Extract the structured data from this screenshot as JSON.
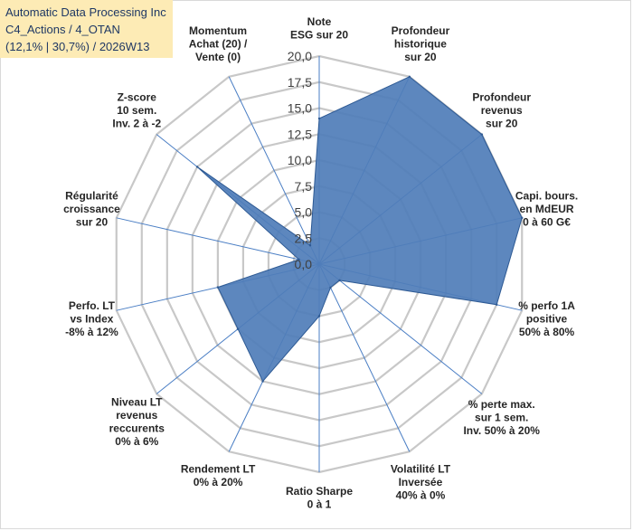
{
  "header": {
    "line1": "Automatic Data Processing Inc",
    "line2": "C4_Actions / 4_OTAN",
    "line3": "(12,1% | 30,7%) / 2026W13"
  },
  "colors": {
    "fill": "#4f7db8",
    "stroke": "#2e5a94",
    "grid": "#c8c8c8",
    "spoke": "#4a7ec4",
    "title_bg": "#fdebb5"
  },
  "chart_data": {
    "type": "radar",
    "title": "",
    "rmin": 0,
    "rmax": 20,
    "ticks": [
      "0,0",
      "2,5",
      "5,0",
      "7,5",
      "10,0",
      "12,5",
      "15,0",
      "17,5",
      "20,0"
    ],
    "tick_values": [
      0,
      2.5,
      5,
      7.5,
      10,
      12.5,
      15,
      17.5,
      20
    ],
    "categories": [
      [
        "Note",
        "ESG sur 20"
      ],
      [
        "Profondeur",
        "historique",
        "sur 20"
      ],
      [
        "Profondeur",
        "revenus",
        "sur 20"
      ],
      [
        "Capi. bours.",
        "en MdEUR",
        "0 à 60 G€"
      ],
      [
        "% perfo 1A",
        "positive",
        "50% à 80%"
      ],
      [
        "% perte max.",
        "sur 1 sem.",
        "Inv. 50% à 20%"
      ],
      [
        "Volatilité LT",
        "Inversée",
        "40% à 0%"
      ],
      [
        "Ratio Sharpe",
        "0 à 1"
      ],
      [
        "Rendement LT",
        "0% à 20%"
      ],
      [
        "Niveau LT",
        "revenus",
        "reccurents",
        "0% à 6%"
      ],
      [
        "Perfo. LT",
        "vs Index",
        "-8% à 12%"
      ],
      [
        "Régularité",
        "croissance",
        "sur 20"
      ],
      [
        "Z-score",
        "10 sem.",
        "Inv. 2 à -2"
      ],
      [
        "Momentum",
        "Achat (20) /",
        "Vente (0)"
      ]
    ],
    "series": [
      {
        "values": [
          14,
          20,
          20,
          20,
          17.5,
          2.5,
          2.5,
          5,
          12.5,
          10,
          10,
          2,
          15,
          2
        ]
      }
    ]
  }
}
